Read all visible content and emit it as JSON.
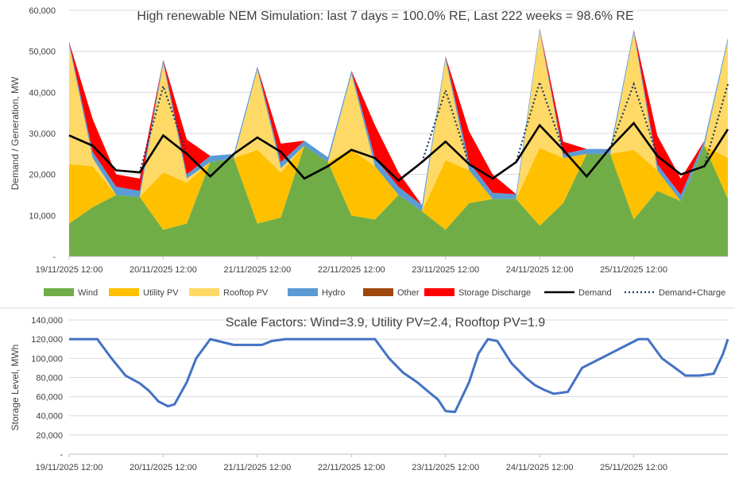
{
  "chart_data": [
    {
      "type": "area",
      "title": "High renewable NEM Simulation: last 7 days = 100.0% RE, Last 222 weeks = 98.6% RE",
      "xlabel": "",
      "ylabel": "Demand / Generation, MW",
      "ylim": [
        0,
        60000
      ],
      "yticks": [
        0,
        10000,
        20000,
        30000,
        40000,
        50000,
        60000
      ],
      "ytick_labels": [
        "-",
        "10,000",
        "20,000",
        "30,000",
        "40,000",
        "50,000",
        "60,000"
      ],
      "xlim": [
        0,
        7
      ],
      "xtick_labels": [
        "19/11/2025 12:00",
        "20/11/2025 12:00",
        "21/11/2025 12:00",
        "22/11/2025 12:00",
        "23/11/2025 12:00",
        "24/11/2025 12:00",
        "25/11/2025 12:00"
      ],
      "x_unit": "days since 19/11/2025 12:00",
      "colors": {
        "Wind": "#70ad47",
        "Utility PV": "#ffc000",
        "Rooftop PV": "#ffd966",
        "Hydro": "#5b9bd5",
        "Other": "#9e480e",
        "Storage Discharge": "#ff0000",
        "Demand": "#000000",
        "Demand+Charge": "#203864"
      },
      "legend": [
        "Wind",
        "Utility PV",
        "Rooftop PV",
        "Hydro",
        "Other",
        "Storage Discharge",
        "Demand",
        "Demand+Charge"
      ],
      "legend_position": "bottom",
      "series": {
        "x": [
          0,
          0.25,
          0.5,
          0.75,
          1,
          1.25,
          1.5,
          1.75,
          2,
          2.25,
          2.5,
          2.75,
          3,
          3.25,
          3.5,
          3.75,
          4,
          4.25,
          4.5,
          4.75,
          5,
          5.25,
          5.5,
          5.75,
          6,
          6.25,
          6.5,
          6.75,
          7
        ],
        "Wind": [
          8000,
          12000,
          15000,
          14500,
          6500,
          8000,
          23000,
          24000,
          8000,
          9500,
          27000,
          23000,
          10000,
          9000,
          15000,
          11000,
          6500,
          13000,
          14000,
          14000,
          7500,
          13000,
          25000,
          25000,
          9000,
          16000,
          13500,
          27000,
          14000
        ],
        "Utility PV": [
          14500,
          10000,
          0,
          0,
          14000,
          10000,
          0,
          0,
          18000,
          11000,
          0,
          0,
          16000,
          13000,
          0,
          0,
          17000,
          8000,
          0,
          0,
          19000,
          11000,
          0,
          0,
          17000,
          5000,
          0,
          0,
          10000
        ],
        "Rooftop PV": [
          29000,
          2000,
          0,
          0,
          26500,
          1000,
          0,
          0,
          19500,
          1000,
          0,
          0,
          18500,
          0,
          0,
          0,
          24500,
          0,
          0,
          0,
          28500,
          0,
          0,
          0,
          28500,
          0,
          0,
          0,
          28500
        ],
        "Hydro": [
          800,
          1500,
          2000,
          1500,
          1000,
          1000,
          1500,
          1000,
          800,
          1500,
          1200,
          1200,
          800,
          2000,
          2000,
          1500,
          800,
          2000,
          1500,
          1200,
          700,
          1000,
          1200,
          1200,
          800,
          1500,
          1500,
          1200,
          800
        ],
        "Storage Discharge": [
          0,
          8000,
          3000,
          3000,
          0,
          8500,
          0,
          0,
          0,
          4500,
          0,
          0,
          0,
          8000,
          3500,
          0,
          0,
          7500,
          4500,
          0,
          0,
          3000,
          0,
          0,
          0,
          7000,
          4000,
          0,
          0
        ],
        "Demand": [
          29500,
          27000,
          21000,
          20500,
          29500,
          25000,
          19500,
          25000,
          29000,
          25500,
          19000,
          22000,
          26000,
          24000,
          18500,
          23000,
          28000,
          22500,
          19000,
          23000,
          32000,
          26000,
          19500,
          26500,
          32500,
          24500,
          20000,
          22000,
          31000
        ],
        "Demand+Charge": [
          29500,
          27000,
          21000,
          20500,
          41500,
          25000,
          19500,
          25000,
          29000,
          25500,
          19000,
          22000,
          26000,
          24000,
          18500,
          23000,
          40500,
          22500,
          19000,
          23000,
          42500,
          26000,
          19500,
          26500,
          42000,
          24500,
          20000,
          22000,
          42000
        ]
      }
    },
    {
      "type": "line",
      "title": "Scale Factors: Wind=3.9, Utility PV=2.4, Rooftop PV=1.9",
      "xlabel": "",
      "ylabel": "Storage Level, MWh",
      "ylim": [
        0,
        140000
      ],
      "yticks": [
        0,
        20000,
        40000,
        60000,
        80000,
        100000,
        120000,
        140000
      ],
      "ytick_labels": [
        "-",
        "20,000",
        "40,000",
        "60,000",
        "80,000",
        "100,000",
        "120,000",
        "140,000"
      ],
      "xlim": [
        0,
        7
      ],
      "xtick_labels": [
        "19/11/2025 12:00",
        "20/11/2025 12:00",
        "21/11/2025 12:00",
        "22/11/2025 12:00",
        "23/11/2025 12:00",
        "24/11/2025 12:00",
        "25/11/2025 12:00"
      ],
      "color": "#4472c4",
      "series": {
        "name": "Storage Level",
        "x": [
          0,
          0.3,
          0.45,
          0.6,
          0.75,
          0.85,
          0.95,
          1.05,
          1.12,
          1.25,
          1.35,
          1.5,
          1.75,
          1.95,
          2.05,
          2.15,
          2.3,
          3.25,
          3.4,
          3.55,
          3.7,
          3.82,
          3.92,
          4.0,
          4.1,
          4.25,
          4.35,
          4.45,
          4.55,
          4.7,
          4.85,
          4.95,
          5.05,
          5.15,
          5.3,
          5.45,
          6.05,
          6.15,
          6.3,
          6.55,
          6.7,
          6.85,
          6.95,
          7.0
        ],
        "values": [
          120000,
          120000,
          100000,
          82000,
          74000,
          66000,
          55000,
          50000,
          52000,
          75000,
          100000,
          120000,
          114000,
          114000,
          114000,
          118000,
          120000,
          120000,
          100000,
          85000,
          75000,
          65000,
          57000,
          45000,
          44000,
          75000,
          105000,
          120000,
          118000,
          95000,
          80000,
          72000,
          67000,
          63000,
          65000,
          90000,
          120000,
          120000,
          100000,
          82000,
          82000,
          84000,
          105000,
          120000
        ]
      }
    }
  ]
}
